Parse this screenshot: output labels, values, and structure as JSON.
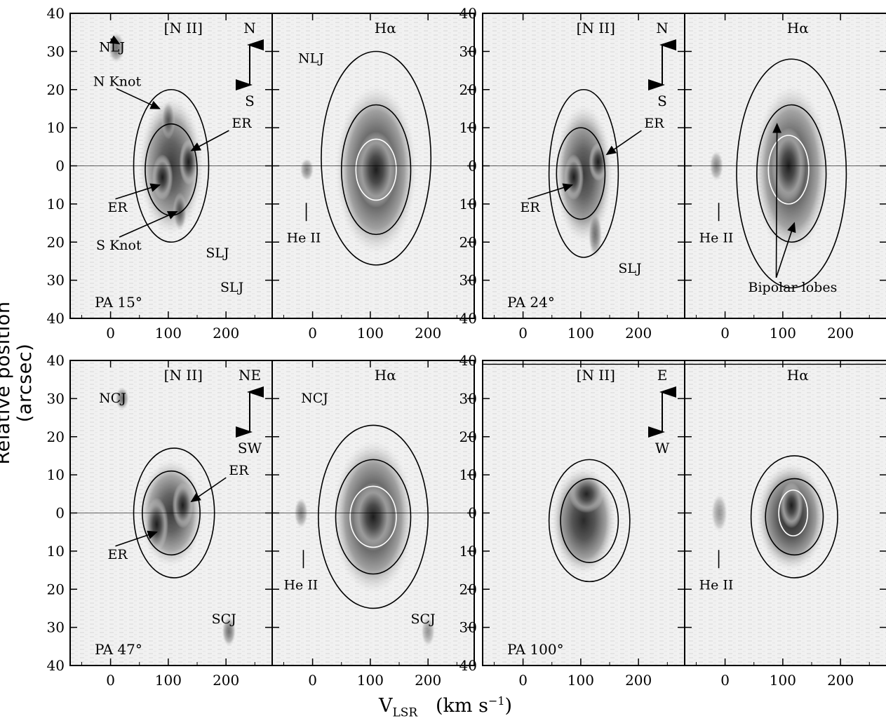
{
  "figure": {
    "ylabel": "Relative position (arcsec)",
    "xlabel_main": "V",
    "xlabel_sub": "LSR",
    "xlabel_unit": "(km s",
    "xlabel_exp": "−1",
    "xlabel_close": ")"
  },
  "chart_data": [
    {
      "type": "heatmap",
      "panel": "PA15-NII",
      "line": "[N II]",
      "pa": "PA 15°",
      "orient": [
        "N",
        "S"
      ],
      "xlim": [
        -70,
        280
      ],
      "ylim": [
        -40,
        40
      ],
      "xticks": [
        0,
        100,
        200
      ],
      "yticks": [
        40,
        30,
        20,
        10,
        0,
        10,
        20,
        30,
        40
      ],
      "labels": [
        {
          "t": "NLJ",
          "x": -20,
          "y": 30,
          "tx": 15,
          "ty": 32
        },
        {
          "t": "N Knot",
          "x": -30,
          "y": 21,
          "tx": 85,
          "ty": 15
        },
        {
          "t": "ER",
          "x": 210,
          "y": 10,
          "tx": 140,
          "ty": 4
        },
        {
          "t": "ER",
          "x": -5,
          "y": -12,
          "tx": 85,
          "ty": -5
        },
        {
          "t": "S Knot",
          "x": -25,
          "y": -22,
          "tx": 115,
          "ty": -12
        },
        {
          "t": "SLJ",
          "x": 165,
          "y": -24
        },
        {
          "t": "SLJ",
          "x": 190,
          "y": -33
        }
      ]
    },
    {
      "type": "heatmap",
      "panel": "PA15-Ha",
      "line": "Hα",
      "xlim": [
        -70,
        280
      ],
      "ylim": [
        -40,
        40
      ],
      "xticks": [
        0,
        100,
        200
      ],
      "labels": [
        {
          "t": "NLJ",
          "x": -25,
          "y": 27
        },
        {
          "t": "He II",
          "x": -45,
          "y": -20
        }
      ]
    },
    {
      "type": "heatmap",
      "panel": "PA24-NII",
      "line": "[N II]",
      "pa": "PA 24°",
      "orient": [
        "N",
        "S"
      ],
      "xlim": [
        -70,
        280
      ],
      "ylim": [
        -40,
        40
      ],
      "xticks": [
        0,
        100,
        200
      ],
      "labels": [
        {
          "t": "ER",
          "x": 210,
          "y": 10,
          "tx": 145,
          "ty": 3
        },
        {
          "t": "ER",
          "x": -5,
          "y": -12,
          "tx": 85,
          "ty": -5
        },
        {
          "t": "SLJ",
          "x": 165,
          "y": -28
        }
      ]
    },
    {
      "type": "heatmap",
      "panel": "PA24-Ha",
      "line": "Hα",
      "xlim": [
        -70,
        280
      ],
      "ylim": [
        -40,
        40
      ],
      "xticks": [
        0,
        100,
        200
      ],
      "labels": [
        {
          "t": "He II",
          "x": -45,
          "y": -20
        },
        {
          "t": "Bipolar lobes",
          "x": 40,
          "y": -33,
          "arrows": [
            [
              90,
              11
            ],
            [
              120,
              -15
            ]
          ]
        }
      ]
    },
    {
      "type": "heatmap",
      "panel": "PA47-NII",
      "line": "[N II]",
      "pa": "PA 47°",
      "orient": [
        "NE",
        "SW"
      ],
      "xlim": [
        -70,
        280
      ],
      "ylim": [
        -40,
        40
      ],
      "xticks": [
        0,
        100,
        200
      ],
      "labels": [
        {
          "t": "NCJ",
          "x": -20,
          "y": 29
        },
        {
          "t": "ER",
          "x": 205,
          "y": 10,
          "tx": 140,
          "ty": 3
        },
        {
          "t": "ER",
          "x": -5,
          "y": -12,
          "tx": 80,
          "ty": -5
        },
        {
          "t": "SCJ",
          "x": 175,
          "y": -29
        }
      ]
    },
    {
      "type": "heatmap",
      "panel": "PA47-Ha",
      "line": "Hα",
      "xlim": [
        -70,
        280
      ],
      "ylim": [
        -40,
        40
      ],
      "xticks": [
        0,
        100,
        200
      ],
      "labels": [
        {
          "t": "NCJ",
          "x": -20,
          "y": 29
        },
        {
          "t": "He II",
          "x": -50,
          "y": -20
        },
        {
          "t": "SCJ",
          "x": 170,
          "y": -29
        }
      ]
    },
    {
      "type": "heatmap",
      "panel": "PA100-NII",
      "line": "[N II]",
      "pa": "PA 100°",
      "orient": [
        "E",
        "W"
      ],
      "xlim": [
        -70,
        280
      ],
      "ylim": [
        -40,
        40
      ],
      "xticks": [
        0,
        100,
        200
      ],
      "labels": []
    },
    {
      "type": "heatmap",
      "panel": "PA100-Ha",
      "line": "Hα",
      "xlim": [
        -70,
        280
      ],
      "ylim": [
        -40,
        40
      ],
      "xticks": [
        0,
        100,
        200
      ],
      "labels": [
        {
          "t": "He II",
          "x": -45,
          "y": -20
        }
      ]
    }
  ]
}
